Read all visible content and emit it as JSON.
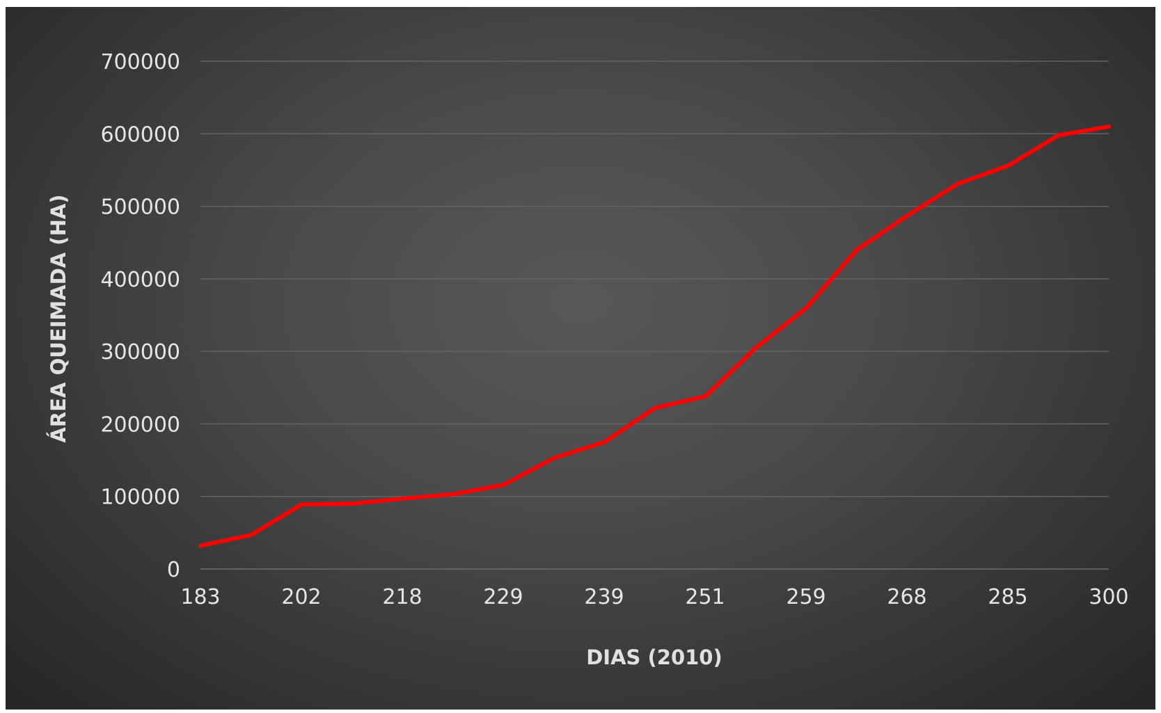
{
  "chart_data": {
    "type": "line",
    "title": "",
    "xlabel": "DIAS (2010)",
    "ylabel": "ÁREA QUEIMADA (HA)",
    "x_tick_labels": [
      "183",
      "202",
      "218",
      "229",
      "239",
      "251",
      "259",
      "268",
      "285",
      "300"
    ],
    "y_ticks": [
      0,
      100000,
      200000,
      300000,
      400000,
      500000,
      600000,
      700000
    ],
    "ylim": [
      0,
      700000
    ],
    "grid": true,
    "legend": "none",
    "line_color": "#ff0000",
    "series": [
      {
        "values": [
          32000,
          47000,
          89000,
          90000,
          97000,
          103000,
          116000,
          153000,
          175000,
          222000,
          238000,
          305000,
          360000,
          440000,
          487000,
          531000,
          556000,
          598000,
          610000
        ]
      }
    ]
  }
}
